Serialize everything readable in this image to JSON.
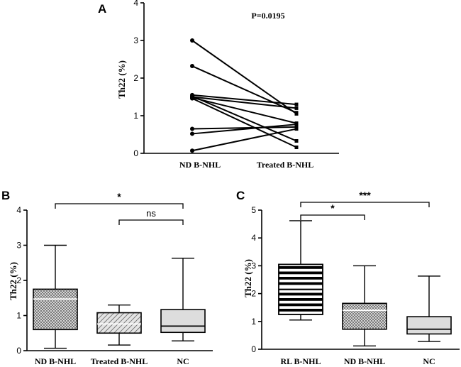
{
  "chart_data": [
    {
      "panel": "A",
      "type": "paired-scatter",
      "ylabel": "Th22 (%)",
      "ylim": [
        0,
        4
      ],
      "yticks": [
        "0",
        "1",
        "2",
        "3",
        "4"
      ],
      "categories": [
        "ND B-NHL",
        "Treated B-NHL"
      ],
      "annotation": "P=0.0195",
      "pairs": [
        [
          3.0,
          1.05
        ],
        [
          2.32,
          1.08
        ],
        [
          1.55,
          1.3
        ],
        [
          1.52,
          0.33
        ],
        [
          1.5,
          1.2
        ],
        [
          1.48,
          0.8
        ],
        [
          1.46,
          0.16
        ],
        [
          0.65,
          0.7
        ],
        [
          0.52,
          0.77
        ],
        [
          0.07,
          0.65
        ]
      ]
    },
    {
      "panel": "B",
      "type": "box",
      "ylabel": "Th22 (%)",
      "ylim": [
        0,
        4
      ],
      "yticks": [
        "0",
        "1",
        "2",
        "3",
        "4"
      ],
      "categories": [
        "ND B-NHL",
        "Treated B-NHL",
        "NC"
      ],
      "boxes": [
        {
          "min": 0.07,
          "q1": 0.6,
          "median": 1.47,
          "q3": 1.75,
          "max": 3.0,
          "fill": "#d0d0d0",
          "pattern": "crosshatch"
        },
        {
          "min": 0.16,
          "q1": 0.5,
          "median": 0.76,
          "q3": 1.08,
          "max": 1.3,
          "fill": "#d8d8d8",
          "pattern": "hatch"
        },
        {
          "min": 0.28,
          "q1": 0.52,
          "median": 0.7,
          "q3": 1.17,
          "max": 2.63,
          "fill": "#dddddd",
          "pattern": "solid"
        }
      ],
      "significance": [
        {
          "from": 0,
          "to": 2,
          "label": "*"
        },
        {
          "from": 1,
          "to": 2,
          "label": "ns"
        }
      ]
    },
    {
      "panel": "C",
      "type": "box",
      "ylabel": "Th22 (%)",
      "ylim": [
        0,
        5
      ],
      "yticks": [
        "0",
        "1",
        "2",
        "3",
        "4",
        "5"
      ],
      "categories": [
        "RL B-NHL",
        "ND B-NHL",
        "NC"
      ],
      "boxes": [
        {
          "min": 1.05,
          "q1": 1.25,
          "median": 2.2,
          "q3": 3.05,
          "max": 4.62,
          "fill": "#ffffff",
          "pattern": "stripes"
        },
        {
          "min": 0.12,
          "q1": 0.72,
          "median": 1.4,
          "q3": 1.65,
          "max": 3.0,
          "fill": "#d0d0d0",
          "pattern": "crosshatch"
        },
        {
          "min": 0.28,
          "q1": 0.55,
          "median": 0.72,
          "q3": 1.17,
          "max": 2.63,
          "fill": "#dddddd",
          "pattern": "solid"
        }
      ],
      "significance": [
        {
          "from": 0,
          "to": 1,
          "label": "*"
        },
        {
          "from": 0,
          "to": 2,
          "label": "***"
        }
      ]
    }
  ]
}
